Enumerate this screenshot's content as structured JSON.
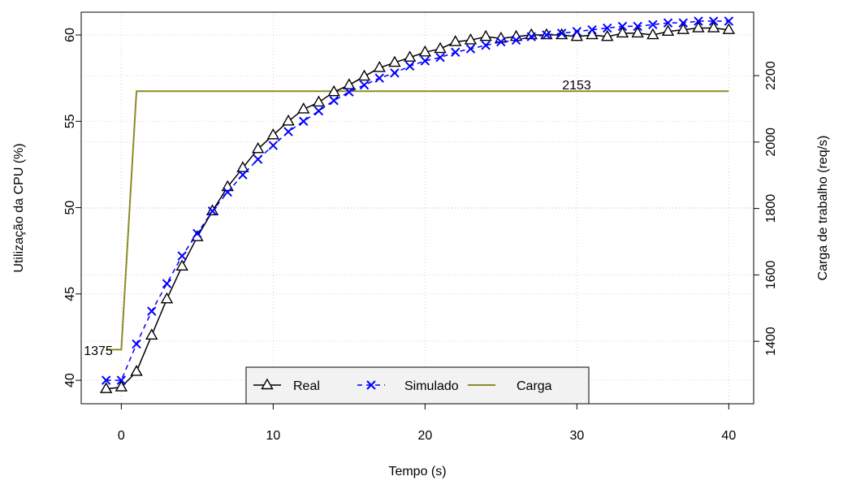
{
  "chart_data": {
    "type": "line",
    "xlabel": "Tempo (s)",
    "ylabel": "Utilização da CPU (%)",
    "y2label": "Carga de trabalho (req/s)",
    "xlim": [
      -2.64,
      41.64
    ],
    "ylim": [
      38.64,
      61.32
    ],
    "y2lim": [
      1212,
      2391
    ],
    "xticks": [
      0,
      10,
      20,
      30,
      40
    ],
    "xtick_labels": [
      "0",
      "10",
      "20",
      "30",
      "40"
    ],
    "yticks": [
      40,
      45,
      50,
      55,
      60
    ],
    "ytick_labels": [
      "40",
      "45",
      "50",
      "55",
      "60"
    ],
    "y2ticks": [
      1400,
      1600,
      1800,
      2000,
      2200
    ],
    "y2tick_labels": [
      "1400",
      "1600",
      "1800",
      "2000",
      "2200"
    ],
    "grid": true,
    "legend_position": "bottom-center",
    "x": [
      -1,
      0,
      1,
      2,
      3,
      4,
      5,
      6,
      7,
      8,
      9,
      10,
      11,
      12,
      13,
      14,
      15,
      16,
      17,
      18,
      19,
      20,
      21,
      22,
      23,
      24,
      25,
      26,
      27,
      28,
      29,
      30,
      31,
      32,
      33,
      34,
      35,
      36,
      37,
      38,
      39,
      40
    ],
    "series": [
      {
        "name": "Real",
        "axis": "left",
        "color": "#000000",
        "marker": "triangle-open",
        "line_style": "solid",
        "values": [
          39.5,
          39.6,
          40.5,
          42.6,
          44.7,
          46.6,
          48.3,
          49.8,
          51.2,
          52.3,
          53.4,
          54.2,
          55.0,
          55.7,
          56.1,
          56.7,
          57.1,
          57.6,
          58.1,
          58.4,
          58.7,
          59.0,
          59.2,
          59.6,
          59.7,
          59.9,
          59.8,
          59.9,
          60.0,
          60.0,
          60.0,
          59.9,
          60.0,
          59.9,
          60.1,
          60.1,
          60.0,
          60.2,
          60.3,
          60.4,
          60.4,
          60.3
        ]
      },
      {
        "name": "Simulado",
        "axis": "left",
        "color": "#0000ff",
        "marker": "x",
        "line_style": "dashed",
        "values": [
          40.0,
          40.0,
          42.1,
          44.0,
          45.6,
          47.2,
          48.5,
          49.8,
          50.9,
          51.9,
          52.8,
          53.6,
          54.4,
          55.0,
          55.6,
          56.2,
          56.7,
          57.1,
          57.5,
          57.8,
          58.2,
          58.5,
          58.7,
          59.0,
          59.2,
          59.4,
          59.6,
          59.7,
          59.9,
          60.0,
          60.1,
          60.2,
          60.3,
          60.4,
          60.5,
          60.5,
          60.6,
          60.7,
          60.7,
          60.8,
          60.8,
          60.8
        ]
      },
      {
        "name": "Carga",
        "axis": "right",
        "color": "#8b8b28",
        "marker": "none",
        "line_style": "solid",
        "values": [
          1375,
          1375,
          2153,
          2153,
          2153,
          2153,
          2153,
          2153,
          2153,
          2153,
          2153,
          2153,
          2153,
          2153,
          2153,
          2153,
          2153,
          2153,
          2153,
          2153,
          2153,
          2153,
          2153,
          2153,
          2153,
          2153,
          2153,
          2153,
          2153,
          2153,
          2153,
          2153,
          2153,
          2153,
          2153,
          2153,
          2153,
          2153,
          2153,
          2153,
          2153,
          2153
        ]
      }
    ],
    "annotations": [
      {
        "text": "1375"
      },
      {
        "text": "2153"
      }
    ],
    "colors": {
      "grid": "#d3d3d3",
      "legend_background": "#f2f2f2",
      "frame": "#000000"
    }
  }
}
